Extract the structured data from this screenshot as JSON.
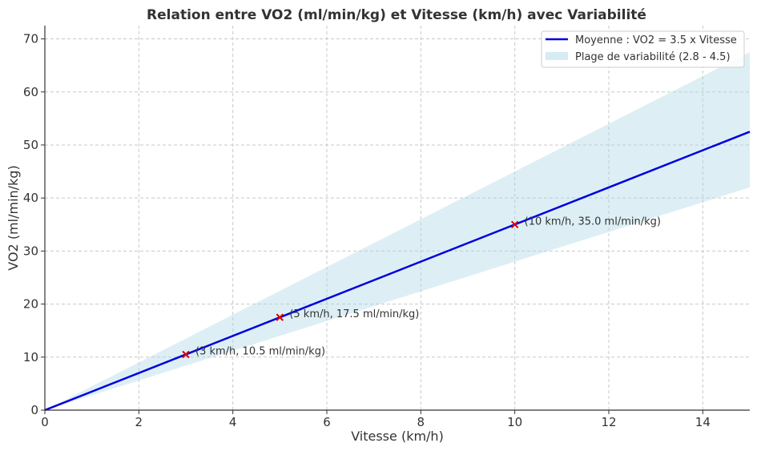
{
  "chart_data": {
    "type": "line",
    "title": "Relation entre VO2 (ml/min/kg) et Vitesse (km/h) avec Variabilité",
    "xlabel": "Vitesse (km/h)",
    "ylabel": "VO2 (ml/min/kg)",
    "xlim": [
      0,
      15
    ],
    "ylim": [
      0,
      72.5
    ],
    "xticks": [
      0,
      2,
      4,
      6,
      8,
      10,
      12,
      14
    ],
    "yticks": [
      0,
      10,
      20,
      30,
      40,
      50,
      60,
      70
    ],
    "grid": true,
    "legend_position": "top-right",
    "series": [
      {
        "name": "Moyenne : VO2 = 3.5 x Vitesse",
        "kind": "line",
        "color": "#0000dd",
        "x": [
          0,
          15
        ],
        "y": [
          0,
          52.5
        ]
      }
    ],
    "band": {
      "name": "Plage de variabilité (2.8 - 4.5)",
      "color": "#add8e6",
      "x": [
        0,
        15
      ],
      "lower": [
        0,
        42
      ],
      "upper": [
        0,
        67.5
      ]
    },
    "points": [
      {
        "x": 3,
        "y": 10.5,
        "label": "(3 km/h, 10.5 ml/min/kg)"
      },
      {
        "x": 5,
        "y": 17.5,
        "label": "(5 km/h, 17.5 ml/min/kg)"
      },
      {
        "x": 10,
        "y": 35.0,
        "label": "(10 km/h, 35.0 ml/min/kg)"
      }
    ],
    "point_color": "#dd0000"
  }
}
